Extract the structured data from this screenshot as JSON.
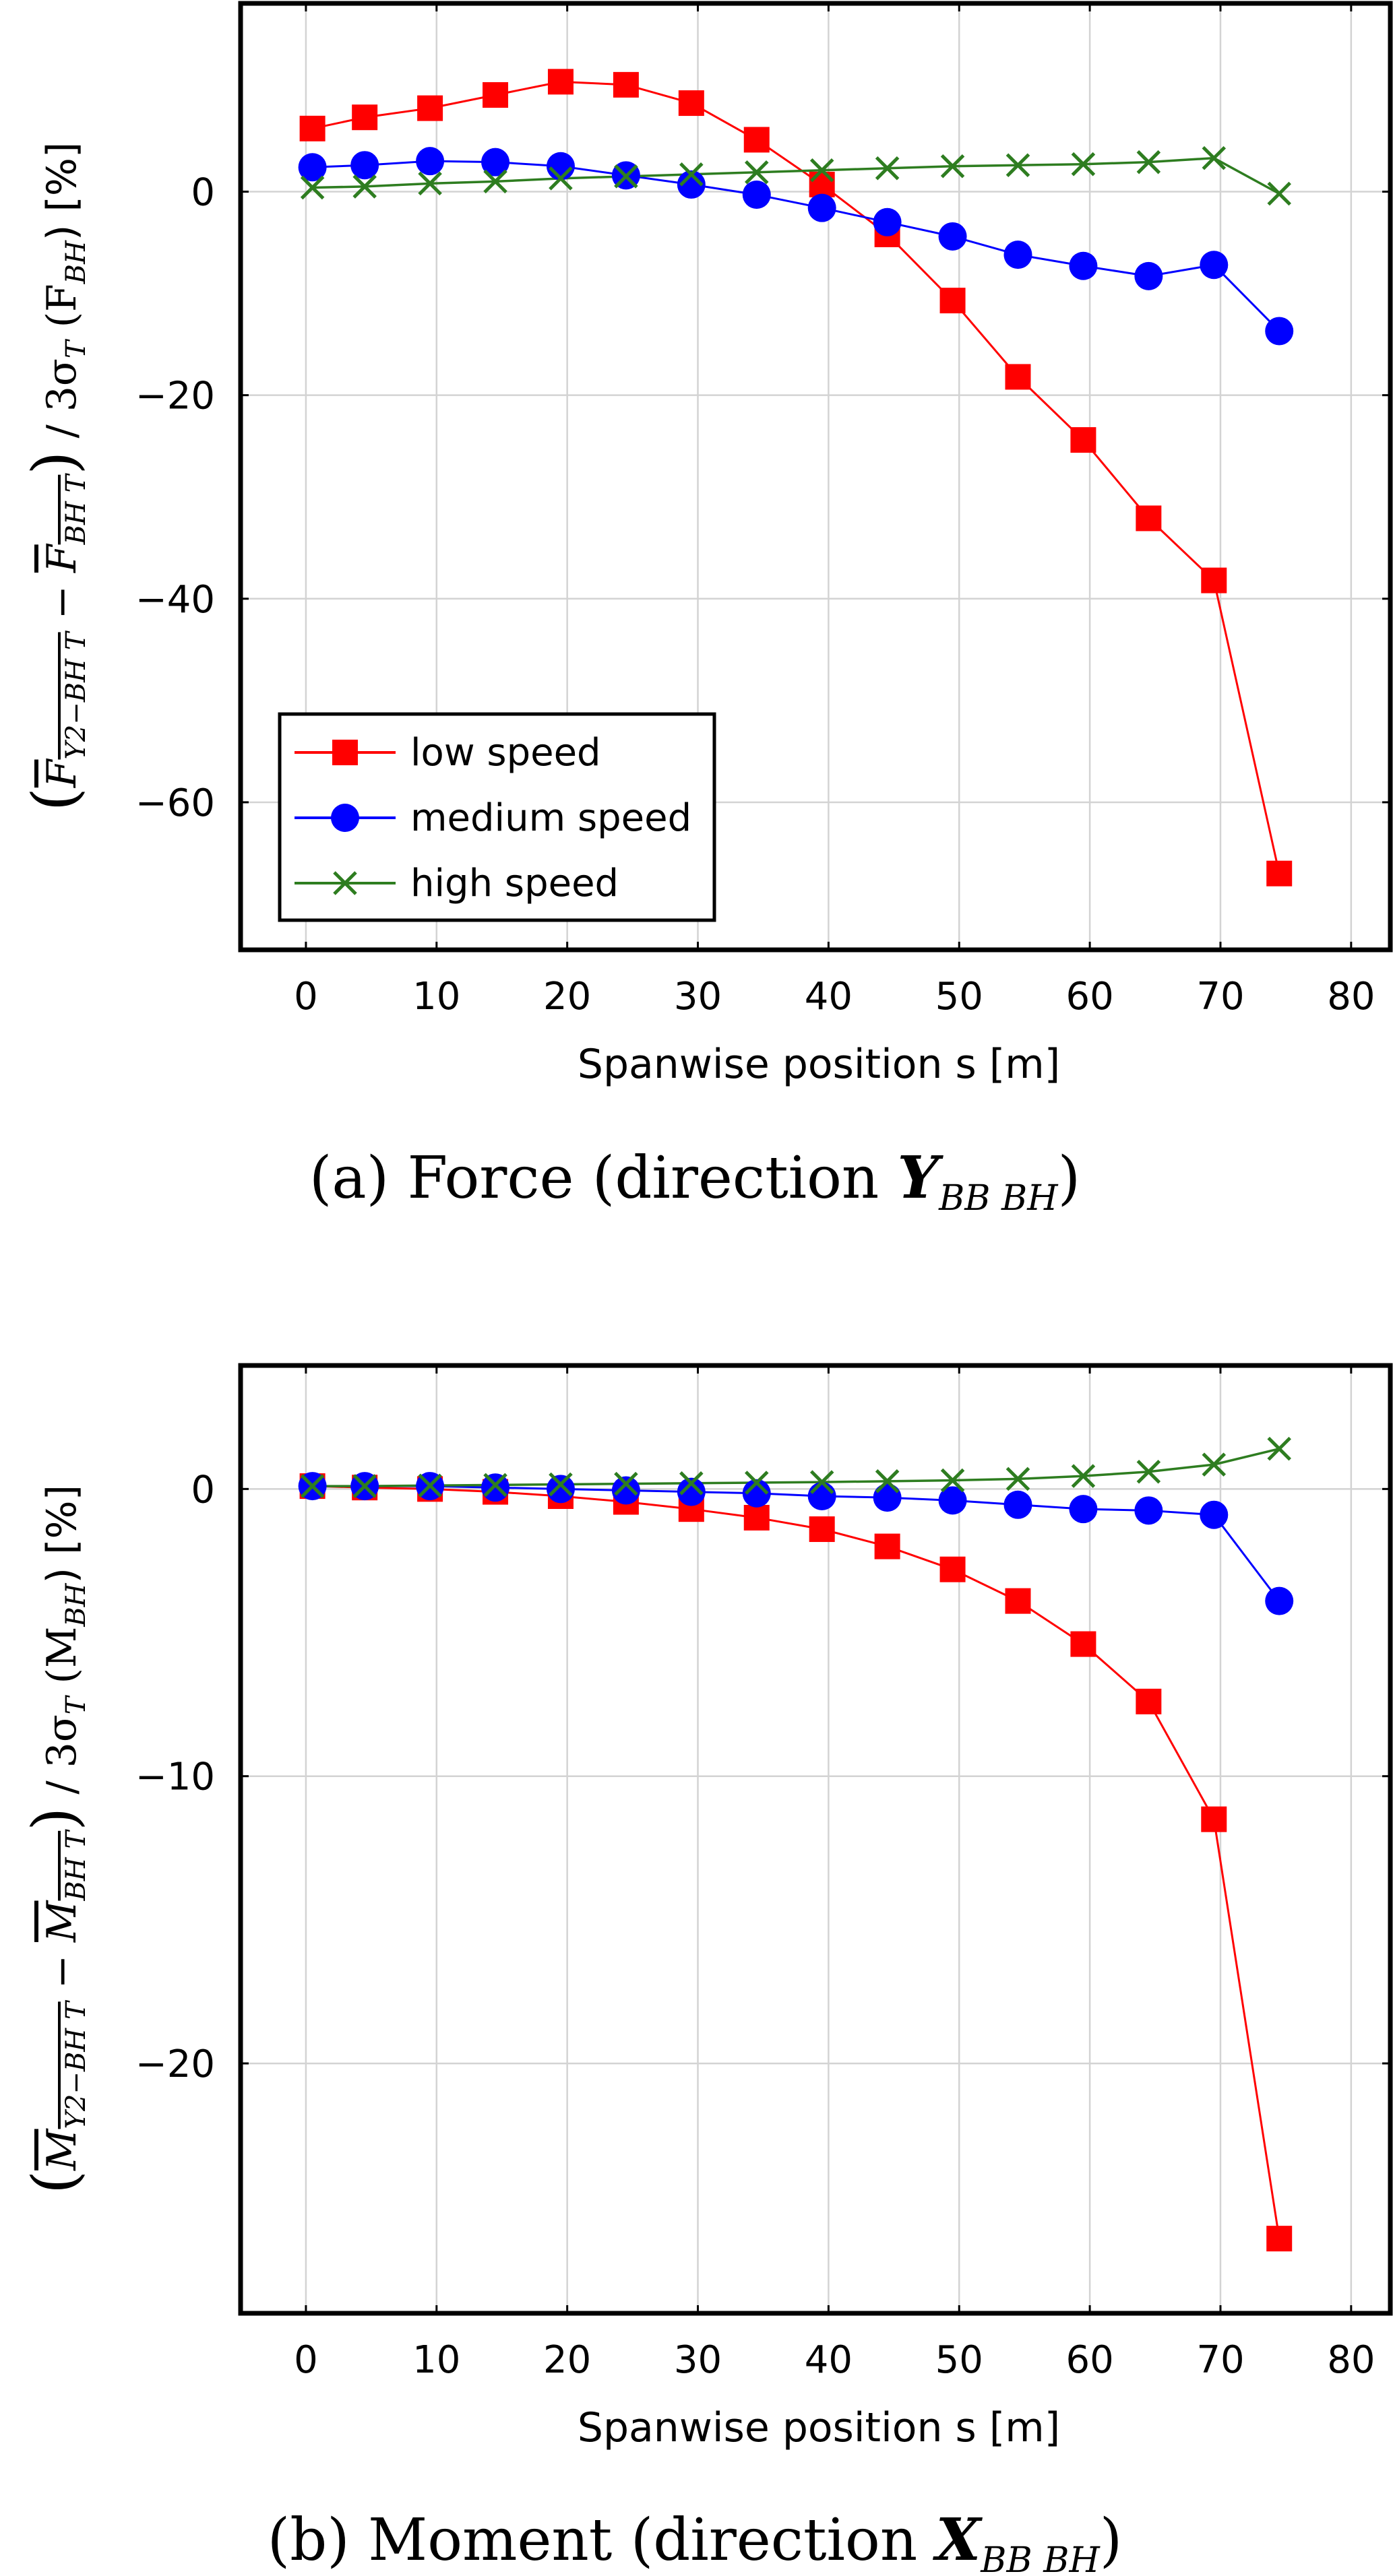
{
  "colors": {
    "low": "#ff0000",
    "medium": "#0000ff",
    "high": "#2e7d20"
  },
  "chart_data": [
    {
      "type": "line",
      "xlabel": "Spanwise position s [m]",
      "ylabel_parts": [
        "(",
        "F",
        "Y2−BH T",
        " − ",
        "F",
        "BH T",
        ")",
        " / 3σ",
        "T",
        " (F",
        "BH",
        ") [%]"
      ],
      "caption": {
        "prefix": "(a) Force  (direction ",
        "bold": "Y",
        "sub": "BB BH",
        "suffix": ")"
      },
      "xlim": [
        -5,
        83
      ],
      "ylim": [
        -74.5,
        18.5
      ],
      "xticks": [
        0,
        10,
        20,
        30,
        40,
        50,
        60,
        70,
        80
      ],
      "yticks": [
        -60,
        -40,
        -20,
        0
      ],
      "ytick_labels": [
        "−60",
        "−40",
        "−20",
        "0"
      ],
      "x": [
        0.5,
        4.5,
        9.5,
        14.5,
        19.5,
        24.5,
        29.5,
        34.5,
        39.5,
        44.5,
        49.5,
        54.5,
        59.5,
        64.5,
        69.5,
        74.5
      ],
      "series": [
        {
          "name": "low speed",
          "marker": "square",
          "values": [
            6.2,
            7.3,
            8.2,
            9.5,
            10.8,
            10.5,
            8.7,
            5.1,
            0.7,
            -4.2,
            -10.7,
            -18.2,
            -24.4,
            -32.1,
            -38.2,
            -67.0
          ]
        },
        {
          "name": "medium speed",
          "marker": "circle",
          "values": [
            2.4,
            2.6,
            3.0,
            2.9,
            2.5,
            1.6,
            0.7,
            -0.3,
            -1.6,
            -3.0,
            -4.4,
            -6.2,
            -7.3,
            -8.3,
            -7.2,
            -13.7
          ]
        },
        {
          "name": "high speed",
          "marker": "x",
          "values": [
            0.4,
            0.5,
            0.8,
            1.0,
            1.3,
            1.5,
            1.7,
            1.9,
            2.1,
            2.3,
            2.5,
            2.6,
            2.7,
            2.9,
            3.3,
            -0.2
          ]
        }
      ],
      "legend": {
        "position": "bottom-left",
        "entries": [
          "low speed",
          "medium speed",
          "high speed"
        ]
      }
    },
    {
      "type": "line",
      "xlabel": "Spanwise position s [m]",
      "ylabel_parts": [
        "(",
        "M",
        "Y2−BH T",
        " − ",
        "M",
        "BH T",
        ")",
        " / 3σ",
        "T",
        " (M",
        "BH",
        ") [%]"
      ],
      "caption": {
        "prefix": "(b) Moment (direction ",
        "bold": "X",
        "sub": "BB BH",
        "suffix": ")"
      },
      "xlim": [
        -5,
        83
      ],
      "ylim": [
        -28.7,
        4.3
      ],
      "xticks": [
        0,
        10,
        20,
        30,
        40,
        50,
        60,
        70,
        80
      ],
      "yticks": [
        -20,
        -10,
        0
      ],
      "ytick_labels": [
        "−20",
        "−10",
        "0"
      ],
      "x": [
        0.5,
        4.5,
        9.5,
        14.5,
        19.5,
        24.5,
        29.5,
        34.5,
        39.5,
        44.5,
        49.5,
        54.5,
        59.5,
        64.5,
        69.5,
        74.5
      ],
      "series": [
        {
          "name": "low speed",
          "marker": "square",
          "values": [
            0.1,
            0.05,
            0.0,
            -0.1,
            -0.25,
            -0.45,
            -0.7,
            -1.0,
            -1.4,
            -2.0,
            -2.8,
            -3.9,
            -5.4,
            -7.4,
            -11.5,
            -26.1
          ]
        },
        {
          "name": "medium speed",
          "marker": "circle",
          "values": [
            0.1,
            0.1,
            0.1,
            0.05,
            0.0,
            -0.05,
            -0.1,
            -0.15,
            -0.25,
            -0.3,
            -0.4,
            -0.55,
            -0.7,
            -0.75,
            -0.9,
            -3.9
          ]
        },
        {
          "name": "high speed",
          "marker": "x",
          "values": [
            0.1,
            0.1,
            0.12,
            0.14,
            0.16,
            0.18,
            0.2,
            0.22,
            0.24,
            0.27,
            0.3,
            0.35,
            0.45,
            0.6,
            0.85,
            1.4
          ]
        }
      ]
    }
  ]
}
